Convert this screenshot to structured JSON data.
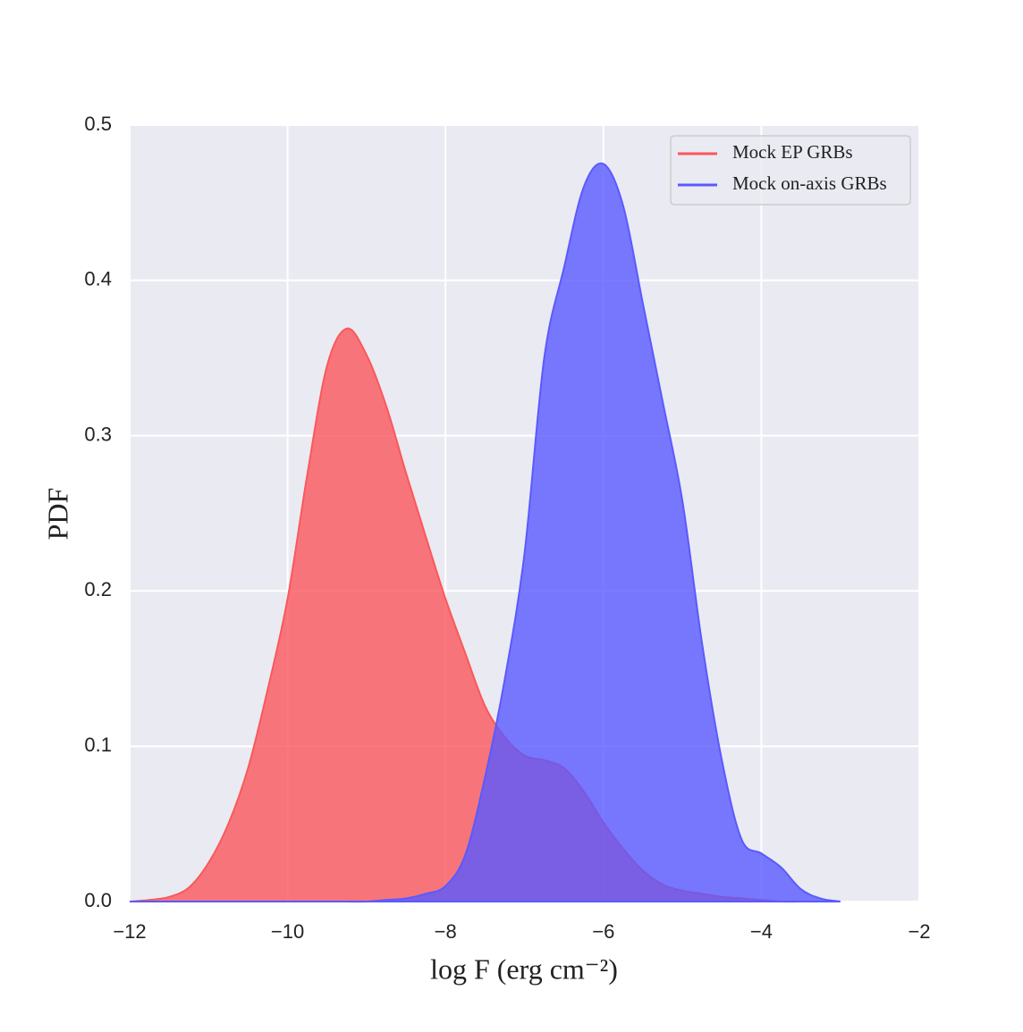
{
  "chart_data": {
    "type": "area",
    "xlabel": "log F (erg cm⁻²)",
    "ylabel": "PDF",
    "x": [
      -12,
      -11.75,
      -11.5,
      -11.25,
      -11,
      -10.75,
      -10.5,
      -10.25,
      -10,
      -9.75,
      -9.5,
      -9.25,
      -9,
      -8.75,
      -8.5,
      -8.25,
      -8,
      -7.75,
      -7.5,
      -7.25,
      -7,
      -6.75,
      -6.5,
      -6.25,
      -6,
      -5.75,
      -5.5,
      -5.25,
      -5,
      -4.75,
      -4.5,
      -4.25,
      -4,
      -3.75,
      -3.5,
      -3.25,
      -3
    ],
    "series": [
      {
        "name": "Mock EP GRBs",
        "color": "#fa585b",
        "values": [
          0,
          0.001,
          0.003,
          0.009,
          0.025,
          0.05,
          0.086,
          0.137,
          0.195,
          0.275,
          0.345,
          0.369,
          0.352,
          0.319,
          0.276,
          0.235,
          0.195,
          0.16,
          0.126,
          0.106,
          0.094,
          0.091,
          0.086,
          0.071,
          0.051,
          0.034,
          0.02,
          0.011,
          0.007,
          0.005,
          0.003,
          0.002,
          0.001,
          0,
          0,
          0,
          0
        ]
      },
      {
        "name": "Mock on-axis GRBs",
        "color": "#5a5aff",
        "values": [
          0,
          0,
          0,
          0,
          0,
          0,
          0,
          0,
          0,
          0,
          0,
          0,
          0,
          0.001,
          0.002,
          0.005,
          0.01,
          0.03,
          0.08,
          0.143,
          0.224,
          0.35,
          0.408,
          0.46,
          0.475,
          0.448,
          0.385,
          0.322,
          0.258,
          0.166,
          0.091,
          0.04,
          0.031,
          0.022,
          0.008,
          0.002,
          0
        ]
      }
    ],
    "xlim": [
      -12,
      -2
    ],
    "xticks": [
      {
        "value": -12,
        "label": "−12"
      },
      {
        "value": -10,
        "label": "−10"
      },
      {
        "value": -8,
        "label": "−8"
      },
      {
        "value": -6,
        "label": "−6"
      },
      {
        "value": -4,
        "label": "−4"
      },
      {
        "value": -2,
        "label": "−2"
      }
    ],
    "ylim": [
      0,
      0.5
    ],
    "yticks": [
      {
        "value": 0,
        "label": "0.0"
      },
      0.1,
      0.2,
      0.3,
      0.4,
      0.5
    ],
    "grid": true,
    "legend": "upper right"
  }
}
